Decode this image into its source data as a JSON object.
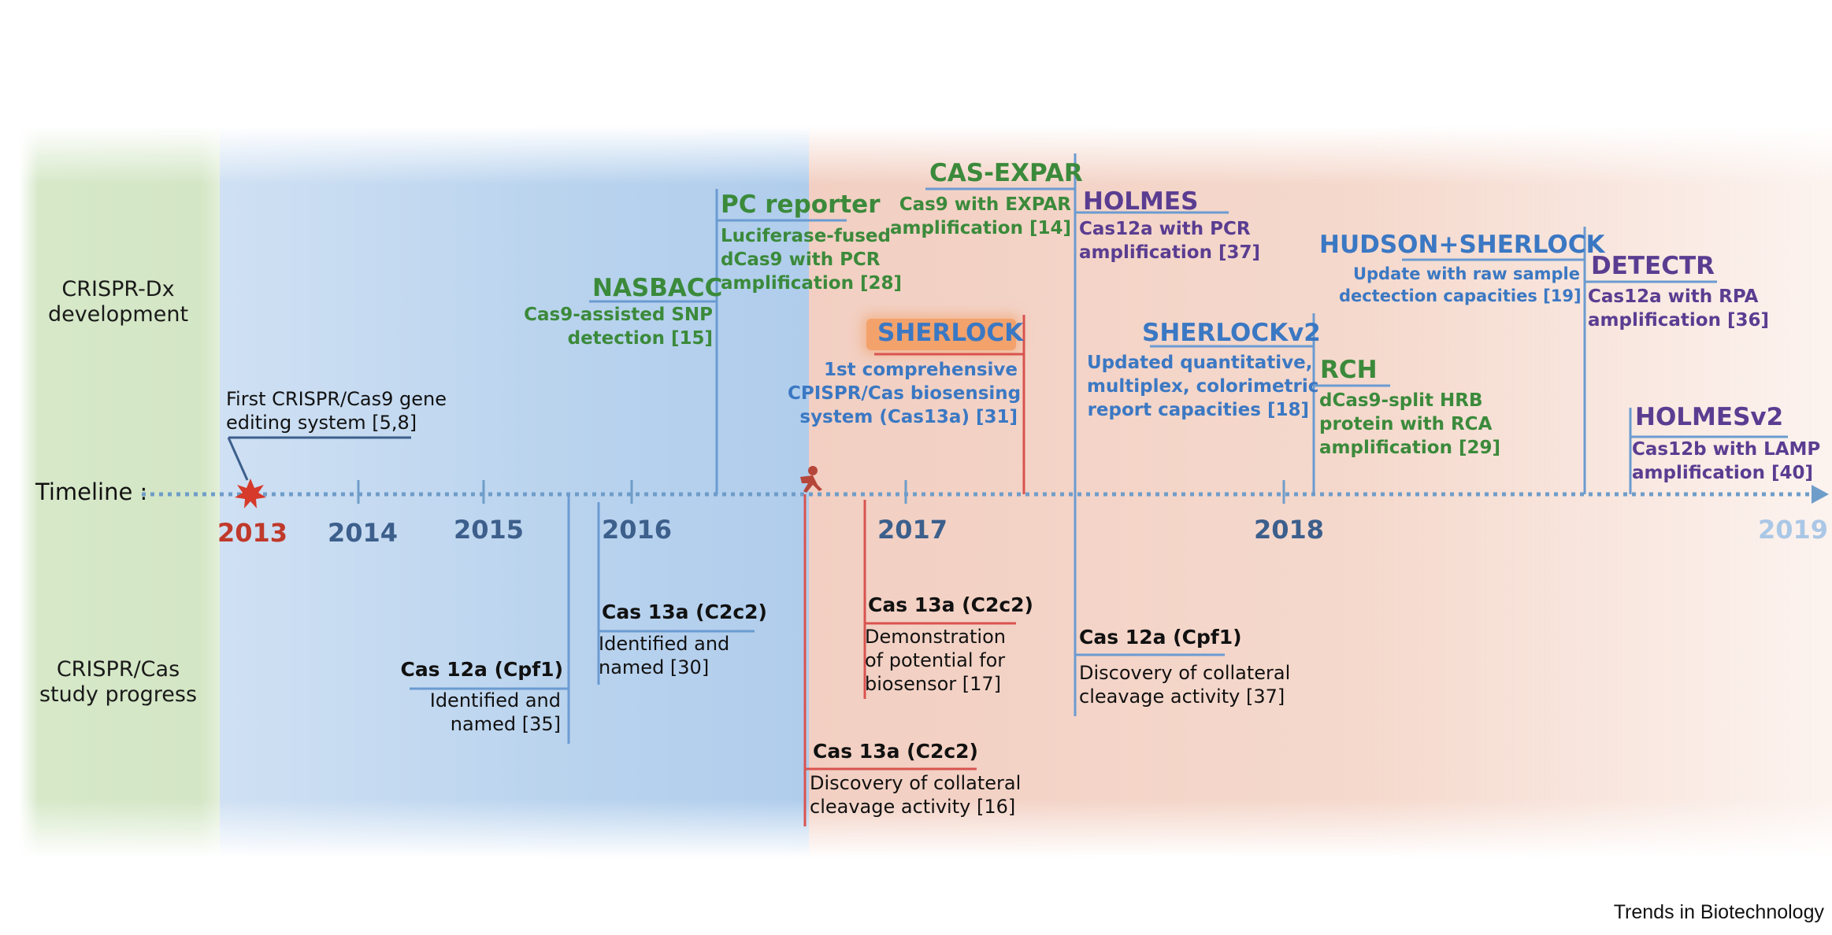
{
  "rows": {
    "dx_label": "CRISPR-Dx\ndevelopment",
    "study_label": "CRISPR/Cas\nstudy progress",
    "timeline_label": "Timeline :"
  },
  "years": [
    "2013",
    "2014",
    "2015",
    "2016",
    "2017",
    "2018",
    "2019"
  ],
  "events_top": {
    "first_crispr": {
      "text": "First CRISPR/Cas9 gene\nediting system [5,8]"
    },
    "nasbacc": {
      "title": "NASBACC",
      "desc": "Cas9-assisted SNP\ndetection [15]"
    },
    "pc_reporter": {
      "title": "PC reporter",
      "desc": "Luciferase-fused\ndCas9 with PCR\namplification [28]"
    },
    "sherlock": {
      "title": "SHERLOCK",
      "desc": "1st comprehensive\nCPISPR/Cas biosensing\nsystem (Cas13a) [31]"
    },
    "cas_expar": {
      "title": "CAS-EXPAR",
      "desc": "Cas9 with EXPAR\namplification [14]"
    },
    "holmes": {
      "title": "HOLMES",
      "desc": "Cas12a with PCR\namplification [37]"
    },
    "sherlockv2": {
      "title": "SHERLOCKv2",
      "desc": "Updated quantitative,\nmultiplex, colorimetric\nreport capacities [18]"
    },
    "rch": {
      "title": "RCH",
      "desc": "dCas9-split HRB\nprotein with RCA\namplification [29]"
    },
    "hudson": {
      "title": "HUDSON+SHERLOCK",
      "desc": "Update with raw sample\ndectection capacities [19]"
    },
    "detectr": {
      "title": "DETECTR",
      "desc": "Cas12a with RPA\namplification [36]"
    },
    "holmesv2": {
      "title": "HOLMESv2",
      "desc": "Cas12b with LAMP\namplification [40]"
    }
  },
  "events_bottom": {
    "cas12a_2015": {
      "title": "Cas 12a (Cpf1)",
      "desc": "Identified and\nnamed [35]"
    },
    "cas13a_2016": {
      "title": "Cas 13a (C2c2)",
      "desc": "Identified and\nnamed [30]"
    },
    "cas13a_collateral": {
      "title": "Cas 13a (C2c2)",
      "desc": "Discovery of collateral\ncleavage activity [16]"
    },
    "cas13a_biosensor": {
      "title": "Cas 13a (C2c2)",
      "desc": "Demonstration\nof potential for\nbiosensor [17]"
    },
    "cas12a_collateral": {
      "title": "Cas 12a (Cpf1)",
      "desc": "Discovery of collateral\ncleavage activity [37]"
    }
  },
  "footer": "Trends in Biotechnology",
  "colors": {
    "green": "#3b8a3b",
    "blue": "#3b78c3",
    "purple": "#5a3d91",
    "red": "#c0392b",
    "timeline": "#6f9dc9",
    "line_blue": "#6b9bd1",
    "line_red": "#d9534f"
  }
}
